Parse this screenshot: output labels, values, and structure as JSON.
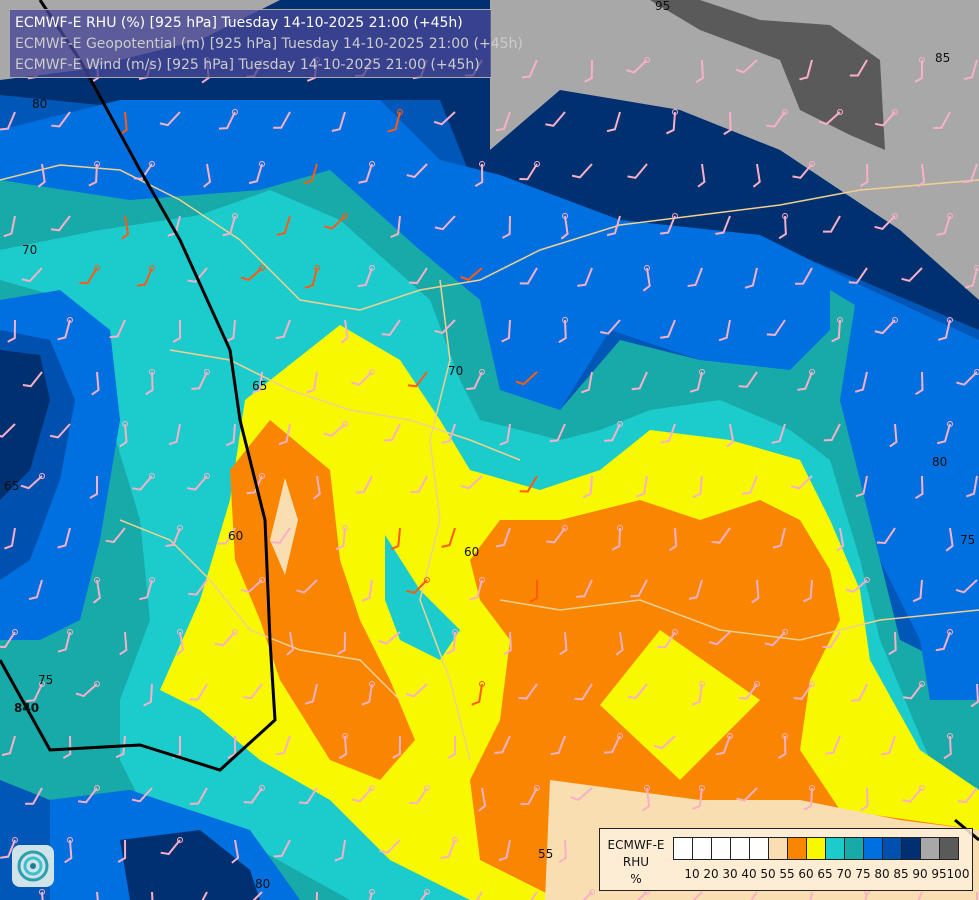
{
  "header": {
    "lines": [
      "ECMWF-E RHU (%) [925 hPa] Tuesday 14-10-2025 21:00 (+45h)",
      "ECMWF-E Geopotential (m) [925 hPa] Tuesday 14-10-2025 21:00 (+45h)",
      "ECMWF-E Wind (m/s) [925 hPa] Tuesday 14-10-2025 21:00 (+45h)"
    ]
  },
  "legend": {
    "model": "ECMWF-E",
    "variable": "RHU",
    "unit": "%",
    "ticks": [
      "10",
      "20",
      "30",
      "40",
      "50",
      "55",
      "60",
      "65",
      "70",
      "75",
      "80",
      "85",
      "90",
      "95",
      "100"
    ],
    "colors": [
      "#ffffff",
      "#ffffff",
      "#ffffff",
      "#ffffff",
      "#ffffff",
      "#f8deb0",
      "#f98500",
      "#f8f800",
      "#1ccccc",
      "#18a9a9",
      "#0070e0",
      "#0050b0",
      "#003070",
      "#a8a8a8",
      "#5a5a5a"
    ]
  },
  "contour_labels": {
    "rhu": [
      "70",
      "65",
      "60",
      "60",
      "70",
      "75",
      "80",
      "85",
      "95",
      "80",
      "75",
      "65",
      "55",
      "80"
    ],
    "geopotential": [
      "840"
    ]
  },
  "logo": "ecmwf-logo"
}
